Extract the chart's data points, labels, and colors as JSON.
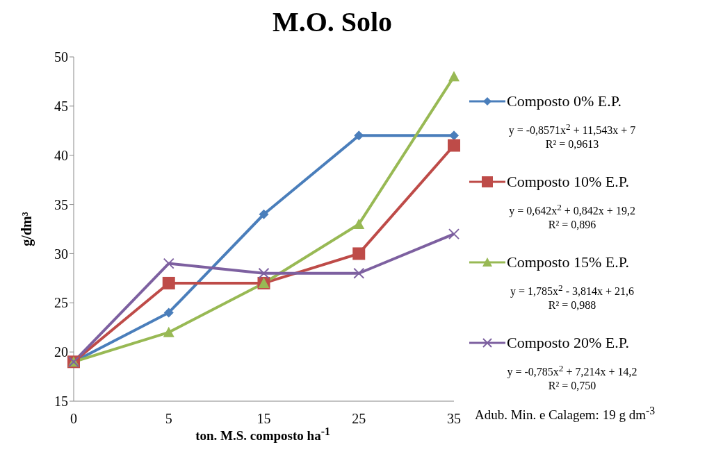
{
  "chart_data": {
    "type": "line",
    "title": "M.O. Solo",
    "xlabel": "ton. M.S. composto ha$^{-1}$",
    "ylabel": "g/dm³",
    "categories": [
      "0",
      "5",
      "15",
      "25",
      "35"
    ],
    "series": [
      {
        "name": "Composto 0% E.P.",
        "color": "#4a7ebb",
        "marker": "diamond",
        "values": [
          19,
          24,
          34,
          42,
          42
        ]
      },
      {
        "name": "Composto 10% E.P.",
        "color": "#be4b48",
        "marker": "square",
        "values": [
          19,
          27,
          27,
          30,
          41
        ]
      },
      {
        "name": "Composto 15% E.P.",
        "color": "#98b954",
        "marker": "triangle",
        "values": [
          19,
          22,
          27,
          33,
          48
        ]
      },
      {
        "name": "Composto 20% E.P.",
        "color": "#7d60a0",
        "marker": "cross",
        "values": [
          19,
          29,
          28,
          28,
          32
        ]
      }
    ],
    "ylim": [
      15,
      50
    ],
    "yticks": [
      15,
      20,
      25,
      30,
      35,
      40,
      45,
      50
    ],
    "grid": false,
    "legend": "right",
    "line_style": "solid",
    "annotations": [
      "y = -0,8571x$^{2}$ + 11,543x + 7\nR² = 0,9613",
      "y = 0,642x$^{2}$ + 0,842x + 19,2\nR² = 0,896",
      "y = 1,785x$^{2}$ - 3,814x + 21,6\nR² = 0,988",
      "y = -0,785x$^{2}$ + 7,214x + 14,2\nR² = 0,750",
      "Adub. Min. e Calagem: 19 g dm$^{-3}$"
    ]
  }
}
